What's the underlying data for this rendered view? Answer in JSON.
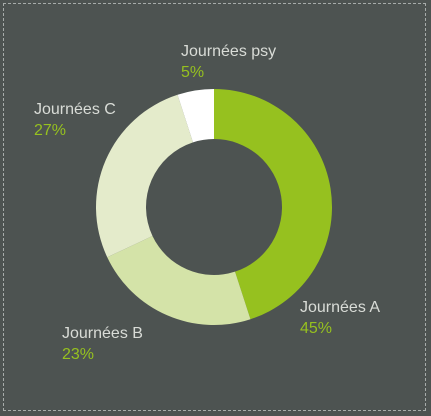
{
  "chart_data": {
    "type": "pie",
    "donut": true,
    "title": "",
    "categories": [
      "Journées A",
      "Journées B",
      "Journées C",
      "Journées psy"
    ],
    "values": [
      45,
      23,
      27,
      5
    ],
    "value_labels": [
      "45%",
      "23%",
      "27%",
      "5%"
    ],
    "colors": [
      "#96c11f",
      "#d4e3a8",
      "#e4ebcb",
      "#ffffff"
    ],
    "legend": "none"
  },
  "style": {
    "background": "#4d5351",
    "label_color": "#d9dcd7",
    "percent_color": "#96c11f"
  }
}
